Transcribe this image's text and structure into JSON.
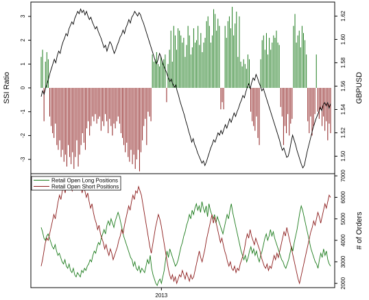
{
  "chart_data": [
    {
      "type": "bar+line",
      "panel": "top",
      "ylabel_left": "SSI Ratio",
      "ylabel_right": "GBPUSD",
      "ylim_left": [
        -3.6,
        3.6
      ],
      "ylim_right": [
        1.485,
        1.632
      ],
      "left_ticks": [
        -3,
        -2,
        -1,
        0,
        1,
        2,
        3
      ],
      "right_ticks": [
        1.5,
        1.52,
        1.54,
        1.56,
        1.58,
        1.6,
        1.62
      ],
      "left_tick_labels": [
        "-3",
        "-2",
        "-1",
        "0",
        "1",
        "2",
        "3"
      ],
      "right_tick_labels": [
        "1.50",
        "1.52",
        "1.54",
        "1.56",
        "1.58",
        "1.60",
        "1.62"
      ],
      "grid": false,
      "series": [
        {
          "kind": "bars",
          "color": "#1a7a1a",
          "sign": "positive",
          "values_source": "ssi_ratio"
        },
        {
          "kind": "bars",
          "color": "#8b1a1a",
          "sign": "negative",
          "values_source": "ssi_ratio"
        },
        {
          "kind": "line",
          "color": "#000000",
          "axis": "right",
          "values_source": "gbpusd"
        }
      ],
      "ssi_ratio": [
        1.3,
        1.6,
        -1.4,
        1.1,
        1.5,
        1.2,
        -1.2,
        -1.6,
        -1.9,
        -2.1,
        -1.5,
        -2.4,
        -2.6,
        -2.2,
        -2.9,
        -2.6,
        -3.1,
        -2.8,
        -3.3,
        -2.4,
        -2.9,
        -3.2,
        -2.7,
        -3.4,
        -2.9,
        -2.2,
        -3.3,
        -2.8,
        -2.4,
        -1.9,
        -2.3,
        -2.6,
        -1.7,
        -1.4,
        -2.0,
        -1.6,
        -1.2,
        -1.4,
        -1.1,
        -1.5,
        -1.3,
        -1.2,
        -1.8,
        -1.4,
        -1.6,
        -1.1,
        -1.4,
        -1.9,
        -1.3,
        -1.6,
        -2.0,
        -1.5,
        -1.7,
        -1.4,
        -1.2,
        -1.5,
        -1.9,
        -2.1,
        -2.4,
        -2.7,
        -2.3,
        -2.9,
        -3.1,
        -2.6,
        -3.2,
        -2.8,
        -3.4,
        -3.0,
        -2.6,
        -3.5,
        -2.7,
        -2.2,
        -1.6,
        -1.3,
        -2.4,
        -1.0,
        -1.2,
        -1.4,
        1.4,
        1.1,
        1.2,
        1.5,
        1.0,
        0.9,
        1.3,
        1.1,
        1.2,
        1.4,
        -0.6,
        1.0,
        1.6,
        2.4,
        1.1,
        2.6,
        2.2,
        1.6,
        2.5,
        2.4,
        2.2,
        1.9,
        2.1,
        1.3,
        1.8,
        2.6,
        2.2,
        1.4,
        1.7,
        2.5,
        1.9,
        2.0,
        2.6,
        1.8,
        2.3,
        1.5,
        1.9,
        2.1,
        2.8,
        3.0,
        2.6,
        1.9,
        2.2,
        3.3,
        3.1,
        2.4,
        2.9,
        2.6,
        -0.9,
        -0.6,
        -0.9,
        2.6,
        2.1,
        2.8,
        3.0,
        2.5,
        3.4,
        2.2,
        2.7,
        3.2,
        1.3,
        3.0,
        1.1,
        0.9,
        1.2,
        1.0,
        0.8,
        1.4,
        1.2,
        -1.0,
        -1.4,
        -1.6,
        -1.8,
        -1.2,
        -2.1,
        -2.4,
        1.2,
        2.0,
        2.2,
        1.6,
        2.3,
        1.4,
        2.1,
        1.6,
        1.9,
        2.2,
        2.1,
        2.4,
        1.9,
        1.8,
        -0.8,
        -1.2,
        -2.4,
        -1.6,
        -1.9,
        -1.1,
        -2.0,
        -1.5,
        -1.3,
        2.6,
        3.1,
        1.9,
        2.2,
        2.4,
        1.7,
        2.6,
        2.3,
        2.0,
        1.4,
        -1.4,
        -1.9,
        -1.2,
        -2.0,
        -1.6,
        -1.1,
        1.4,
        -1.0,
        -1.3,
        -0.9,
        -1.6,
        -1.2,
        -1.8,
        -1.4,
        -2.2,
        -1.5,
        -1.9
      ],
      "gbpusd": [
        1.551,
        1.556,
        1.553,
        1.558,
        1.562,
        1.566,
        1.571,
        1.575,
        1.579,
        1.583,
        1.58,
        1.586,
        1.59,
        1.588,
        1.594,
        1.598,
        1.601,
        1.605,
        1.603,
        1.609,
        1.612,
        1.615,
        1.613,
        1.618,
        1.621,
        1.624,
        1.622,
        1.626,
        1.623,
        1.625,
        1.621,
        1.624,
        1.62,
        1.617,
        1.619,
        1.615,
        1.612,
        1.609,
        1.611,
        1.607,
        1.604,
        1.601,
        1.597,
        1.593,
        1.595,
        1.59,
        1.594,
        1.598,
        1.596,
        1.592,
        1.588,
        1.591,
        1.595,
        1.598,
        1.602,
        1.604,
        1.608,
        1.605,
        1.61,
        1.613,
        1.617,
        1.614,
        1.619,
        1.621,
        1.624,
        1.622,
        1.62,
        1.623,
        1.621,
        1.617,
        1.614,
        1.61,
        1.606,
        1.602,
        1.598,
        1.594,
        1.59,
        1.586,
        1.582,
        1.579,
        1.583,
        1.588,
        1.585,
        1.58,
        1.577,
        1.574,
        1.571,
        1.567,
        1.564,
        1.566,
        1.562,
        1.559,
        1.561,
        1.556,
        1.552,
        1.547,
        1.543,
        1.539,
        1.535,
        1.53,
        1.526,
        1.521,
        1.517,
        1.512,
        1.515,
        1.51,
        1.507,
        1.503,
        1.5,
        1.497,
        1.494,
        1.496,
        1.492,
        1.495,
        1.499,
        1.503,
        1.507,
        1.51,
        1.514,
        1.512,
        1.516,
        1.52,
        1.518,
        1.522,
        1.519,
        1.523,
        1.527,
        1.524,
        1.528,
        1.532,
        1.529,
        1.533,
        1.537,
        1.534,
        1.538,
        1.541,
        1.545,
        1.548,
        1.552,
        1.55,
        1.555,
        1.559,
        1.562,
        1.558,
        1.563,
        1.567,
        1.565,
        1.57,
        1.567,
        1.563,
        1.56,
        1.556,
        1.558,
        1.554,
        1.55,
        1.546,
        1.542,
        1.538,
        1.534,
        1.53,
        1.526,
        1.522,
        1.518,
        1.514,
        1.509,
        1.505,
        1.507,
        1.503,
        1.499,
        1.5,
        1.505,
        1.512,
        1.518,
        1.514,
        1.51,
        1.505,
        1.501,
        1.497,
        1.493,
        1.49,
        1.492,
        1.498,
        1.504,
        1.509,
        1.514,
        1.519,
        1.524,
        1.528,
        1.532,
        1.535,
        1.538,
        1.542,
        1.539,
        1.544,
        1.546,
        1.543,
        1.546,
        1.541,
        1.545
      ]
    },
    {
      "type": "line",
      "panel": "bottom",
      "ylabel_right": "# of Orders",
      "ylim_right": [
        1800,
        7100
      ],
      "right_ticks": [
        2000,
        3000,
        4000,
        5000,
        6000,
        7000
      ],
      "right_tick_labels": [
        "2000",
        "3000",
        "4000",
        "5000",
        "6000",
        "7000"
      ],
      "xlabel_ticks": [
        {
          "x_index": 86,
          "label": "2013"
        }
      ],
      "legend": {
        "placement": "top-left"
      },
      "grid": false,
      "series": [
        {
          "name": "Retail Open Long Positions",
          "color": "#1a7a1a",
          "values": [
            4600,
            4400,
            4100,
            4000,
            4200,
            4300,
            4100,
            3900,
            3700,
            3600,
            3800,
            3500,
            3300,
            3400,
            3200,
            3000,
            2900,
            3100,
            2800,
            2700,
            2900,
            2600,
            2500,
            2700,
            2400,
            2300,
            2500,
            2400,
            2300,
            2600,
            2500,
            2700,
            2600,
            2800,
            2900,
            3100,
            3000,
            3300,
            3500,
            3400,
            3700,
            3900,
            3800,
            4100,
            4300,
            4500,
            4300,
            4700,
            4900,
            4700,
            5000,
            4800,
            4600,
            4900,
            5100,
            5300,
            5100,
            4800,
            4500,
            4200,
            4000,
            3800,
            3600,
            3400,
            3200,
            3100,
            2800,
            3000,
            2700,
            2600,
            2800,
            2500,
            2700,
            2600,
            2500,
            2800,
            3100,
            2900,
            3300,
            2700,
            2400,
            2200,
            2000,
            1900,
            2100,
            2200,
            2000,
            2300,
            2600,
            3100,
            3500,
            3200,
            3600,
            3400,
            3200,
            3000,
            2800,
            2900,
            3100,
            3400,
            3700,
            3900,
            4200,
            4400,
            4700,
            4900,
            5200,
            5000,
            5400,
            5200,
            5500,
            5700,
            5400,
            5600,
            5300,
            5800,
            5500,
            5300,
            5600,
            5100,
            5700,
            5400,
            5200,
            5000,
            5200,
            4800,
            5100,
            4900,
            4700,
            4500,
            4300,
            4600,
            4900,
            5200,
            5000,
            5400,
            5700,
            5300,
            5000,
            4700,
            4400,
            4100,
            3800,
            3500,
            3300,
            3100,
            3300,
            3000,
            3200,
            3500,
            3700,
            3400,
            3600,
            3300,
            3500,
            3200,
            3000,
            3300,
            3500,
            3800,
            4100,
            4300,
            4000,
            4200,
            4500,
            4200,
            4400,
            4100,
            3900,
            3700,
            3500,
            3300,
            3100,
            3000,
            2800,
            2700,
            2900,
            3100,
            3400,
            3700,
            3500,
            3900,
            4200,
            4500,
            4900,
            5300,
            5600,
            5400,
            5100,
            4800,
            4500,
            4200,
            3900,
            3600,
            3400,
            3200,
            3000,
            2900,
            2700,
            3100,
            3400,
            3200,
            3600,
            3300,
            3500,
            3100,
            2900,
            2800
          ]
        },
        {
          "name": "Retail Open Short Positions",
          "color": "#8b1a1a",
          "values": [
            2800,
            3100,
            3500,
            3900,
            4100,
            4000,
            4300,
            4600,
            4900,
            5200,
            5000,
            5400,
            5800,
            6100,
            5900,
            6300,
            6500,
            6200,
            6600,
            6400,
            6700,
            6500,
            6300,
            6600,
            6800,
            6500,
            6700,
            6400,
            6600,
            6200,
            6500,
            6300,
            6000,
            6200,
            5800,
            5500,
            5700,
            5300,
            5000,
            4800,
            4500,
            4700,
            4300,
            4100,
            3900,
            3600,
            3800,
            3500,
            3300,
            3600,
            3400,
            3100,
            3300,
            3500,
            3700,
            4000,
            4200,
            4500,
            4300,
            4700,
            5000,
            5300,
            5600,
            5400,
            5800,
            6100,
            5900,
            6300,
            6200,
            6500,
            6300,
            6100,
            5700,
            5300,
            4900,
            4500,
            4100,
            3700,
            3400,
            3800,
            4200,
            4600,
            4900,
            5200,
            5000,
            4700,
            4300,
            3900,
            3500,
            3100,
            2700,
            2400,
            2200,
            2400,
            2100,
            2300,
            2000,
            2200,
            2400,
            2300,
            2600,
            2400,
            2200,
            2500,
            2300,
            2100,
            2400,
            2200,
            2300,
            2600,
            2900,
            3200,
            3500,
            3200,
            3000,
            3300,
            3600,
            4000,
            4300,
            4600,
            4900,
            5200,
            4800,
            5100,
            4800,
            4500,
            4200,
            3900,
            4100,
            3800,
            3500,
            3300,
            3000,
            2800,
            3000,
            2700,
            2600,
            2800,
            2500,
            2700,
            2600,
            2900,
            3100,
            3300,
            3600,
            4000,
            4300,
            4100,
            4500,
            4200,
            4000,
            3800,
            4100,
            3900,
            3700,
            3500,
            3200,
            3000,
            2800,
            2700,
            2900,
            2600,
            2800,
            2700,
            3000,
            3300,
            3100,
            3400,
            3200,
            3500,
            3800,
            4100,
            4400,
            4200,
            4600,
            4300,
            4000,
            3700,
            3400,
            3100,
            2800,
            2500,
            2200,
            2000,
            2300,
            2600,
            2900,
            3200,
            3500,
            3800,
            4100,
            4400,
            4600,
            4900,
            4700,
            5000,
            5300,
            5100,
            4800,
            5100,
            5400,
            5700,
            5500,
            5800,
            6100,
            6000
          ]
        }
      ]
    }
  ]
}
